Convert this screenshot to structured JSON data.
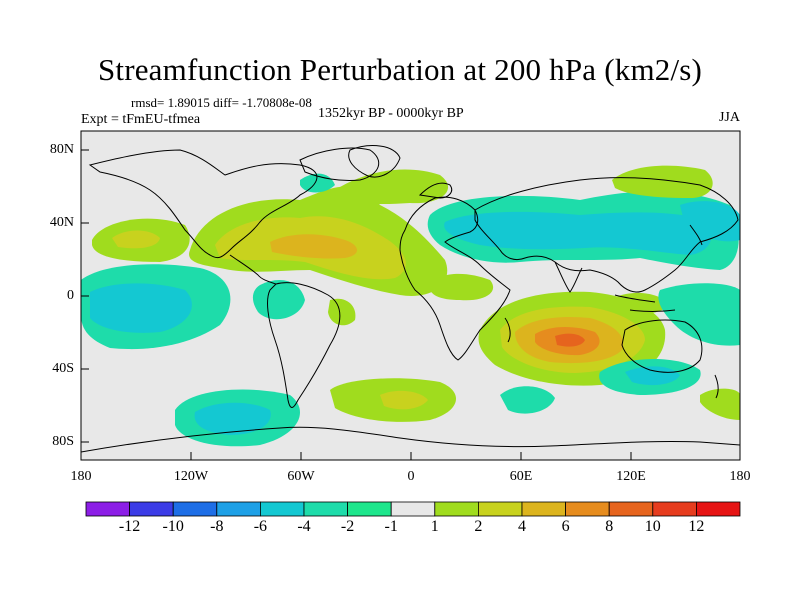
{
  "figure": {
    "title": "Streamfunction Perturbation at 200 hPa (km2/s)",
    "stats": "rmsd= 1.89015 diff= -1.70808e-08",
    "experiment": "Expt = tFmEU-tfmea",
    "period": "1352kyr BP - 0000kyr BP",
    "season": "JJA"
  },
  "axes": {
    "lat_labels": [
      "80N",
      "40N",
      "0",
      "40S",
      "80S"
    ],
    "lon_labels": [
      "180",
      "120W",
      "60W",
      "0",
      "60E",
      "120E",
      "180"
    ]
  },
  "colorbar": {
    "labels": [
      "-12",
      "-10",
      "-8",
      "-6",
      "-4",
      "-2",
      "-1",
      "1",
      "2",
      "4",
      "6",
      "8",
      "10",
      "12"
    ],
    "colors": [
      "#8c1ee6",
      "#3c3ce6",
      "#1e6ee6",
      "#1ea0e6",
      "#14c8d2",
      "#1edcaa",
      "#1ee68c",
      "#e8e8e8",
      "#a0dc1e",
      "#c8d21e",
      "#dcb41e",
      "#e68c1e",
      "#e6641e",
      "#e63c1e",
      "#e61414"
    ]
  },
  "colors": {
    "background": "#e8e8e8",
    "coast": "#000000"
  }
}
